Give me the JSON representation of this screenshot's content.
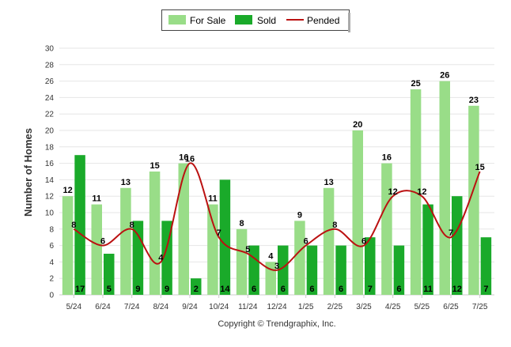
{
  "chart_data": {
    "type": "bar",
    "categories": [
      "5/24",
      "6/24",
      "7/24",
      "8/24",
      "9/24",
      "10/24",
      "11/24",
      "12/24",
      "1/25",
      "2/25",
      "3/25",
      "4/25",
      "5/25",
      "6/25",
      "7/25"
    ],
    "series": [
      {
        "name": "For Sale",
        "kind": "bar",
        "color": "#99dd88",
        "values": [
          12,
          11,
          13,
          15,
          16,
          11,
          8,
          4,
          9,
          13,
          20,
          16,
          25,
          26,
          23
        ]
      },
      {
        "name": "Sold",
        "kind": "bar",
        "color": "#1aaa2a",
        "values": [
          17,
          5,
          9,
          9,
          2,
          14,
          6,
          6,
          6,
          6,
          7,
          6,
          11,
          12,
          7
        ]
      },
      {
        "name": "Pended",
        "kind": "line",
        "color": "#bb1111",
        "values": [
          8,
          6,
          8,
          4,
          16,
          7,
          5,
          3,
          6,
          8,
          6,
          12,
          12,
          7,
          15
        ]
      }
    ],
    "ylabel": "Number of Homes",
    "xlabel": "",
    "ylim": [
      0,
      30
    ],
    "yticks": [
      0,
      2,
      4,
      6,
      8,
      10,
      12,
      14,
      16,
      18,
      20,
      22,
      24,
      26,
      28,
      30
    ],
    "grid": true,
    "legend": "top-center"
  },
  "footer": "Copyright © Trendgraphix, Inc."
}
